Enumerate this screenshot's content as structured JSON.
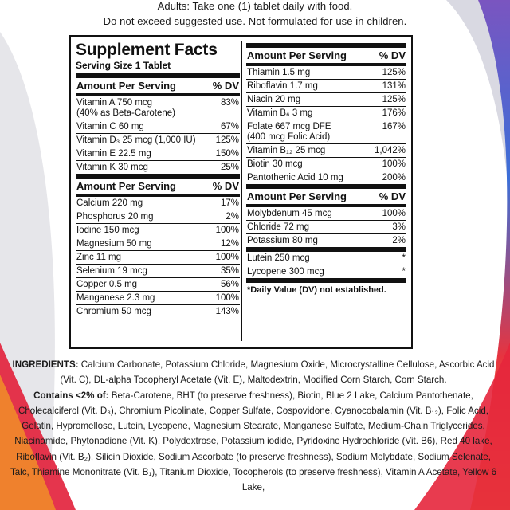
{
  "header": {
    "line1": "Adults: Take one (1) tablet daily with food.",
    "line2": "Do not exceed suggested use. Not formulated for use in children."
  },
  "facts": {
    "title": "Supplement Facts",
    "serving_size": "Serving Size 1 Tablet",
    "amount_header": "Amount Per Serving",
    "dv_header": "% DV",
    "left_groups": [
      {
        "rows": [
          {
            "name": "Vitamin A 750 mcg\n(40% as Beta-Carotene)",
            "dv": "83%"
          },
          {
            "name": "Vitamin C 60 mg",
            "dv": "67%"
          },
          {
            "name": "Vitamin D₃ 25 mcg (1,000 IU)",
            "dv": "125%"
          },
          {
            "name": "Vitamin E 22.5 mg",
            "dv": "150%"
          },
          {
            "name": "Vitamin K 30 mcg",
            "dv": "25%"
          }
        ]
      },
      {
        "rows": [
          {
            "name": "Calcium 220 mg",
            "dv": "17%"
          },
          {
            "name": "Phosphorus 20 mg",
            "dv": "2%"
          },
          {
            "name": "Iodine 150 mcg",
            "dv": "100%"
          },
          {
            "name": "Magnesium 50 mg",
            "dv": "12%"
          },
          {
            "name": "Zinc 11 mg",
            "dv": "100%"
          },
          {
            "name": "Selenium 19 mcg",
            "dv": "35%"
          },
          {
            "name": "Copper 0.5 mg",
            "dv": "56%"
          },
          {
            "name": "Manganese 2.3 mg",
            "dv": "100%"
          },
          {
            "name": "Chromium 50 mcg",
            "dv": "143%"
          }
        ]
      }
    ],
    "right_groups": [
      {
        "rows": [
          {
            "name": "Thiamin 1.5 mg",
            "dv": "125%"
          },
          {
            "name": "Riboflavin 1.7 mg",
            "dv": "131%"
          },
          {
            "name": "Niacin 20 mg",
            "dv": "125%"
          },
          {
            "name": "Vitamin B₆ 3 mg",
            "dv": "176%"
          },
          {
            "name": "Folate 667 mcg DFE\n(400 mcg Folic Acid)",
            "dv": "167%"
          },
          {
            "name": "Vitamin B₁₂ 25 mcg",
            "dv": "1,042%"
          },
          {
            "name": "Biotin 30 mcg",
            "dv": "100%"
          },
          {
            "name": "Pantothenic Acid 10 mg",
            "dv": "200%"
          }
        ]
      },
      {
        "rows": [
          {
            "name": "Molybdenum 45 mcg",
            "dv": "100%"
          },
          {
            "name": "Chloride 72 mg",
            "dv": "3%"
          },
          {
            "name": "Potassium 80 mg",
            "dv": "2%"
          }
        ]
      }
    ],
    "extra_rows": [
      {
        "name": "Lutein 250 mcg",
        "dv": "*"
      },
      {
        "name": "Lycopene 300 mcg",
        "dv": "*"
      }
    ],
    "footnote": "*Daily Value (DV) not established."
  },
  "ingredients": {
    "label": "INGREDIENTS:",
    "text": " Calcium Carbonate, Potassium Chloride, Magnesium Oxide, Microcrystalline Cellulose, Ascorbic Acid (Vit. C), DL-alpha Tocopheryl Acetate (Vit. E), Maltodextrin, Modified Corn Starch, Corn Starch.",
    "contains_label": "Contains <2% of:",
    "contains_text": " Beta-Carotene, BHT (to preserve freshness), Biotin, Blue 2 Lake, Calcium Pantothenate, Cholecalciferol (Vit. D₃), Chromium Picolinate, Copper Sulfate, Cospovidone, Cyanocobalamin (Vit. B₁₂), Folic Acid, Gelatin, Hypromellose, Lutein, Lycopene, Magnesium Stearate, Manganese Sulfate, Medium-Chain Triglycerides, Niacinamide, Phytonadione (Vit. K), Polydextrose, Potassium iodide, Pyridoxine Hydrochloride (Vit. B6), Red 40 lake, Riboflavin (Vit. B₂), Silicin Dioxide, Sodium Ascorbate (to preserve freshness), Sodium Molybdate, Sodium Selenate, Talc, Thiamine Mononitrate (Vit. B₁), Titanium Dioxide, Tocopherols (to preserve freshness), Vitamin A Acetate, Yellow 6 Lake,"
  },
  "colors": {
    "swoosh_red": "#d9263a",
    "swoosh_orange": "#f28b2a",
    "swoosh_blue": "#2f6fd6",
    "swoosh_purple": "#6a4bb5",
    "ink": "#111111"
  }
}
